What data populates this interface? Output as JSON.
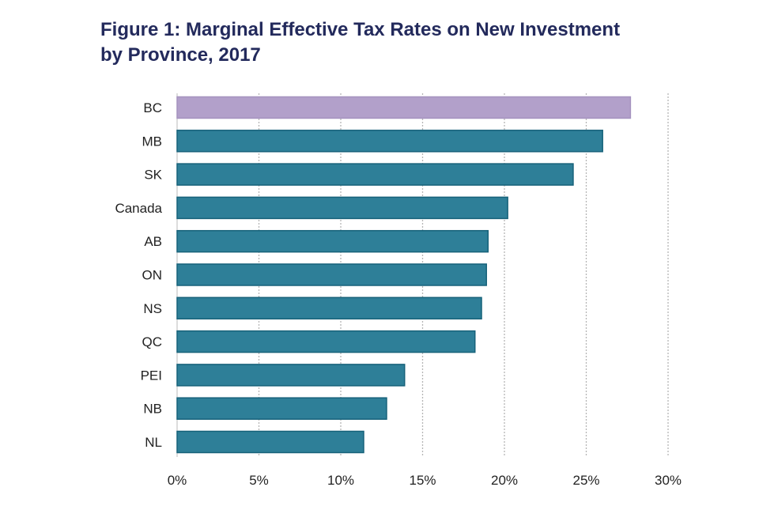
{
  "chart_data": {
    "type": "bar",
    "orientation": "horizontal",
    "title_line1": "Figure 1: Marginal Effective Tax Rates on New Investment",
    "title_line2": "by Province, 2017",
    "categories": [
      "BC",
      "MB",
      "SK",
      "Canada",
      "AB",
      "ON",
      "NS",
      "QC",
      "PEI",
      "NB",
      "NL"
    ],
    "values": [
      27.7,
      26.0,
      24.2,
      20.2,
      19.0,
      18.9,
      18.6,
      18.2,
      13.9,
      12.8,
      11.4
    ],
    "unit": "%",
    "xlim": [
      0,
      30
    ],
    "xticks": [
      "0%",
      "5%",
      "10%",
      "15%",
      "20%",
      "25%",
      "30%"
    ],
    "grid": "vertical dotted",
    "highlight_category": "BC",
    "colors": {
      "default": "#2e7f98",
      "border": "#17627a",
      "highlight": "#b2a0ca",
      "title": "#232a5c"
    }
  }
}
